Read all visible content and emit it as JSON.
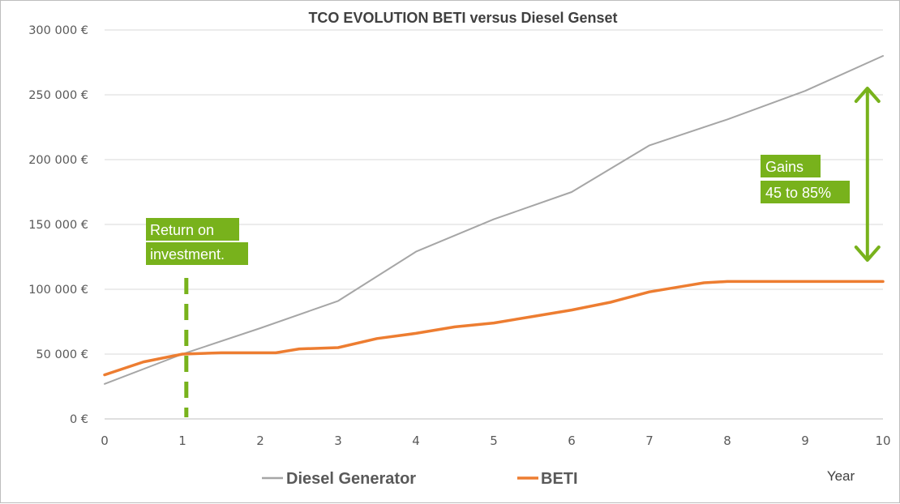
{
  "chart_data": {
    "type": "line",
    "title": "TCO EVOLUTION BETI versus Diesel Genset",
    "xlabel": "Year",
    "ylabel": "",
    "x": [
      0,
      1,
      2,
      3,
      4,
      5,
      6,
      7,
      8,
      9,
      10
    ],
    "xlim": [
      0,
      10
    ],
    "ylim": [
      0,
      300000
    ],
    "y_ticks": [
      0,
      50000,
      100000,
      150000,
      200000,
      250000,
      300000
    ],
    "y_tick_labels": [
      "0 €",
      "50 000 €",
      "100 000 €",
      "150 000 €",
      "200 000 €",
      "250 000 €",
      "300 000 €"
    ],
    "x_tick_labels": [
      "0",
      "1",
      "2",
      "3",
      "4",
      "5",
      "6",
      "7",
      "8",
      "9",
      "10"
    ],
    "grid": "horizontal",
    "legend_position": "bottom",
    "series": [
      {
        "name": "Diesel Generator",
        "color": "#a6a6a6",
        "points": [
          [
            0,
            27000
          ],
          [
            1,
            50000
          ],
          [
            2,
            70000
          ],
          [
            3,
            91000
          ],
          [
            4,
            129000
          ],
          [
            5,
            154000
          ],
          [
            6,
            175000
          ],
          [
            7,
            211000
          ],
          [
            8,
            231000
          ],
          [
            9,
            253000
          ],
          [
            10,
            280000
          ]
        ]
      },
      {
        "name": "BETI",
        "color": "#ed7d31",
        "points": [
          [
            0,
            34000
          ],
          [
            0.5,
            44000
          ],
          [
            1,
            50000
          ],
          [
            1.5,
            51000
          ],
          [
            2.2,
            51000
          ],
          [
            2.5,
            54000
          ],
          [
            3,
            55000
          ],
          [
            3.5,
            62000
          ],
          [
            4,
            66000
          ],
          [
            4.5,
            71000
          ],
          [
            5,
            74000
          ],
          [
            5.5,
            79000
          ],
          [
            6,
            84000
          ],
          [
            6.5,
            90000
          ],
          [
            7,
            98000
          ],
          [
            7.5,
            103000
          ],
          [
            7.7,
            105000
          ],
          [
            8,
            106000
          ],
          [
            9,
            106000
          ],
          [
            10,
            106000
          ]
        ]
      }
    ],
    "annotations": [
      {
        "id": "roi",
        "lines": [
          "Return on",
          "investment."
        ],
        "x": 1.05,
        "color": "#78b21c"
      },
      {
        "id": "gains",
        "lines": [
          "Gains",
          "45 to 85%"
        ],
        "x": 9.8,
        "y_from": 106000,
        "y_to": 253000,
        "color": "#78b21c"
      }
    ]
  }
}
